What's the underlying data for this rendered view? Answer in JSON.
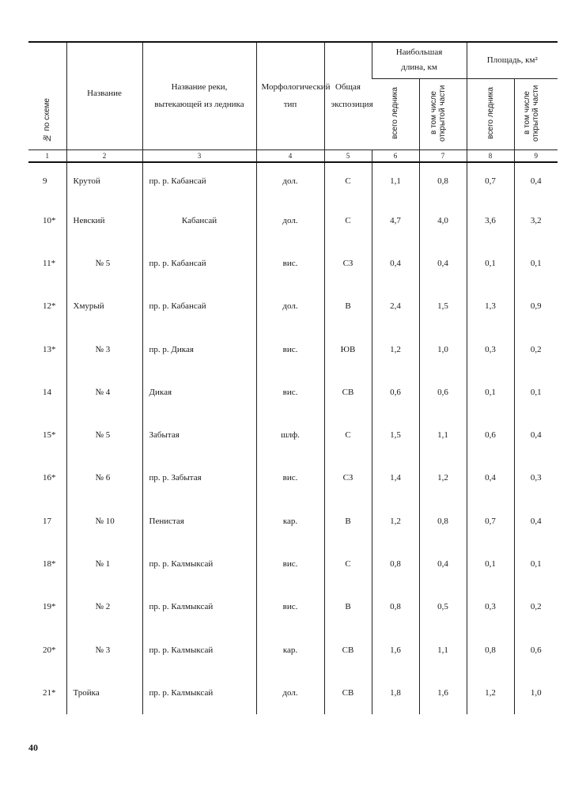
{
  "header": {
    "col1": "№ по схеме",
    "col2": "Название",
    "col3": "Название реки, вытекающей из ледника",
    "col4": "Морфологический тип",
    "col5": "Общая экспозиция",
    "group_length": "Наибольшая длина, км",
    "group_area": "Площадь, км²",
    "sub_total": "всего ледника",
    "sub_open": "в том числе открытой части",
    "numbers": [
      "1",
      "2",
      "3",
      "4",
      "5",
      "6",
      "7",
      "8",
      "9"
    ]
  },
  "rows": [
    {
      "no": "9",
      "name": "Крутой",
      "river": "пр. р. Кабансай",
      "type": "дол.",
      "exp": "С",
      "len_total": "1,1",
      "len_open": "0,8",
      "area_total": "0,7",
      "area_open": "0,4"
    },
    {
      "no": "10*",
      "name": "Невский",
      "river": "Кабансай",
      "type": "дол.",
      "exp": "С",
      "len_total": "4,7",
      "len_open": "4,0",
      "area_total": "3,6",
      "area_open": "3,2"
    },
    {
      "no": "11*",
      "name": "№ 5",
      "river": "пр. р. Кабансай",
      "type": "вис.",
      "exp": "СЗ",
      "len_total": "0,4",
      "len_open": "0,4",
      "area_total": "0,1",
      "area_open": "0,1"
    },
    {
      "no": "12*",
      "name": "Хмурый",
      "river": "пр. р. Кабансай",
      "type": "дол.",
      "exp": "В",
      "len_total": "2,4",
      "len_open": "1,5",
      "area_total": "1,3",
      "area_open": "0,9"
    },
    {
      "no": "13*",
      "name": "№ 3",
      "river": "пр. р. Дикая",
      "type": "вис.",
      "exp": "ЮВ",
      "len_total": "1,2",
      "len_open": "1,0",
      "area_total": "0,3",
      "area_open": "0,2"
    },
    {
      "no": "14",
      "name": "№ 4",
      "river": "Дикая",
      "type": "вис.",
      "exp": "СВ",
      "len_total": "0,6",
      "len_open": "0,6",
      "area_total": "0,1",
      "area_open": "0,1"
    },
    {
      "no": "15*",
      "name": "№ 5",
      "river": "Забытая",
      "type": "шлф.",
      "exp": "С",
      "len_total": "1,5",
      "len_open": "1,1",
      "area_total": "0,6",
      "area_open": "0,4"
    },
    {
      "no": "16*",
      "name": "№ 6",
      "river": "пр. р. Забытая",
      "type": "вис.",
      "exp": "СЗ",
      "len_total": "1,4",
      "len_open": "1,2",
      "area_total": "0,4",
      "area_open": "0,3"
    },
    {
      "no": "17",
      "name": "№ 10",
      "river": "Пенистая",
      "type": "кар.",
      "exp": "В",
      "len_total": "1,2",
      "len_open": "0,8",
      "area_total": "0,7",
      "area_open": "0,4"
    },
    {
      "no": "18*",
      "name": "№ 1",
      "river": "пр. р. Калмыксай",
      "type": "вис.",
      "exp": "С",
      "len_total": "0,8",
      "len_open": "0,4",
      "area_total": "0,1",
      "area_open": "0,1"
    },
    {
      "no": "19*",
      "name": "№ 2",
      "river": "пр. р. Калмыксай",
      "type": "вис.",
      "exp": "В",
      "len_total": "0,8",
      "len_open": "0,5",
      "area_total": "0,3",
      "area_open": "0,2"
    },
    {
      "no": "20*",
      "name": "№ 3",
      "river": "пр. р. Калмыксай",
      "type": "кар.",
      "exp": "СВ",
      "len_total": "1,6",
      "len_open": "1,1",
      "area_total": "0,8",
      "area_open": "0,6"
    },
    {
      "no": "21*",
      "name": "Тройка",
      "river": "пр. р. Калмыксай",
      "type": "дол.",
      "exp": "СВ",
      "len_total": "1,8",
      "len_open": "1,6",
      "area_total": "1,2",
      "area_open": "1,0"
    }
  ],
  "page_number": "40"
}
